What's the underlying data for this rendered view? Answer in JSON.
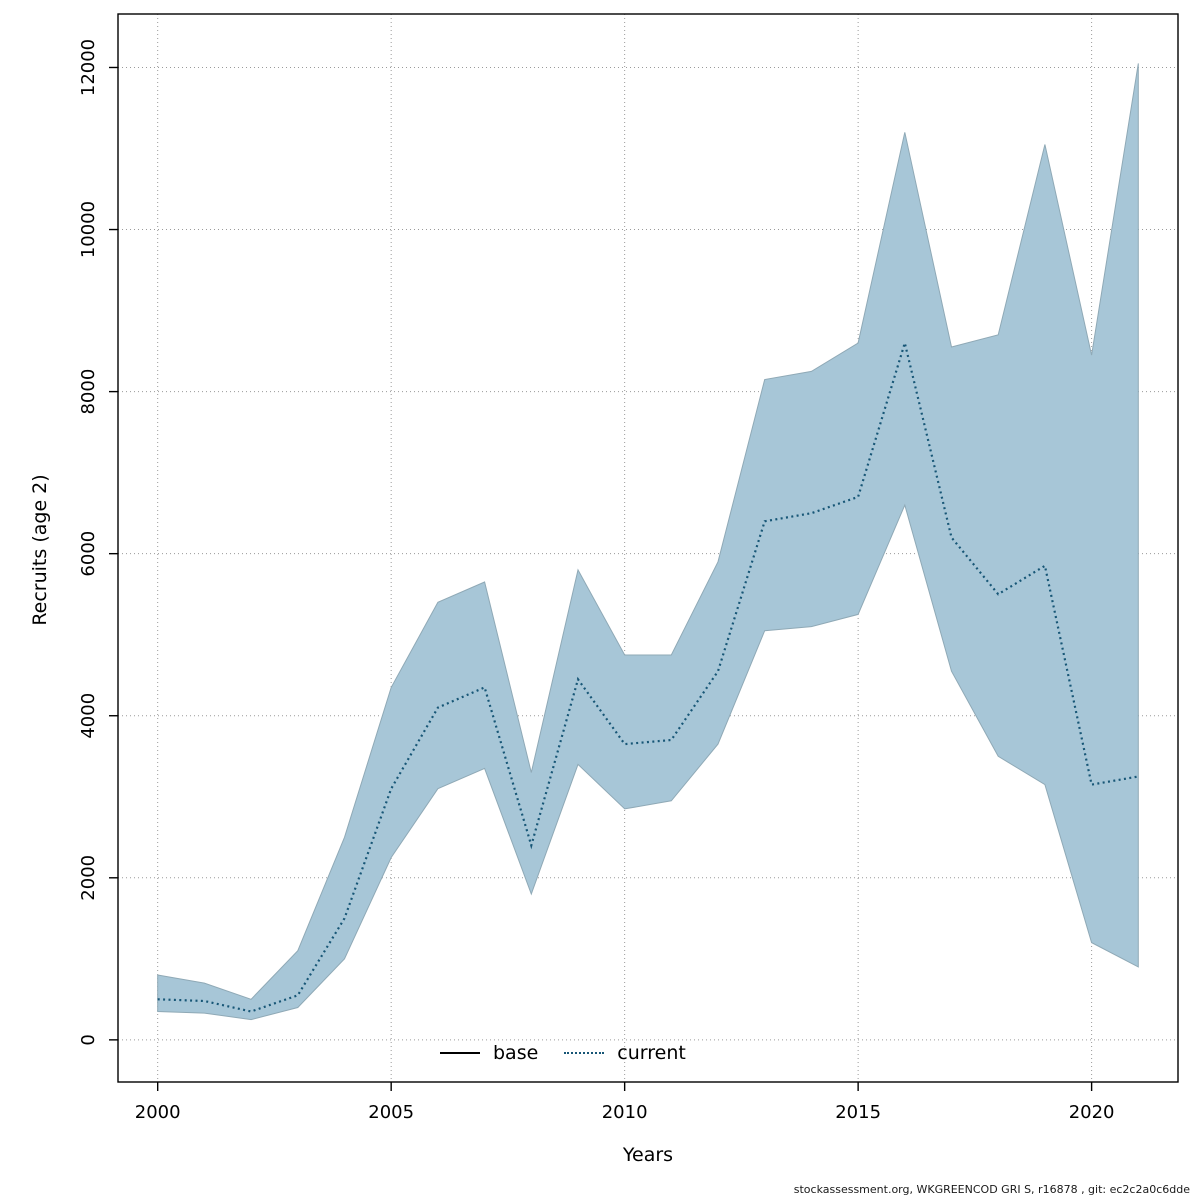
{
  "footer": "stockassessment.org, WKGREENCOD  GRI  S, r16878 , git: ec2c2a0c6dde",
  "chart_data": {
    "type": "area",
    "title": "",
    "xlabel": "Years",
    "ylabel": "Recruits (age 2)",
    "xlim": [
      2000,
      2021
    ],
    "ylim": [
      0,
      12000
    ],
    "xticks": [
      2000,
      2005,
      2010,
      2015,
      2020
    ],
    "yticks": [
      0,
      2000,
      4000,
      6000,
      8000,
      10000,
      12000
    ],
    "grid": true,
    "legend": [
      "base",
      "current"
    ],
    "legend_position": "bottom-center-inside",
    "x": [
      2000,
      2001,
      2002,
      2003,
      2004,
      2005,
      2006,
      2007,
      2008,
      2009,
      2010,
      2011,
      2012,
      2013,
      2014,
      2015,
      2016,
      2017,
      2018,
      2019,
      2020,
      2021
    ],
    "series": [
      {
        "name": "current",
        "style": "dotted-line",
        "values": [
          500,
          480,
          350,
          550,
          1500,
          3100,
          4100,
          4350,
          2400,
          4450,
          3650,
          3700,
          4550,
          6400,
          6500,
          6700,
          8600,
          6200,
          5500,
          5850,
          3150,
          3250
        ]
      },
      {
        "name": "ci-upper",
        "style": "ribbon-upper",
        "values": [
          800,
          700,
          500,
          1100,
          2500,
          4350,
          5400,
          5650,
          3300,
          5800,
          4750,
          4750,
          5900,
          8150,
          8250,
          8600,
          11200,
          8550,
          8700,
          11050,
          8450,
          12050
        ]
      },
      {
        "name": "ci-lower",
        "style": "ribbon-lower",
        "values": [
          350,
          330,
          250,
          400,
          1000,
          2250,
          3100,
          3350,
          1800,
          3400,
          2850,
          2950,
          3650,
          5050,
          5100,
          5250,
          6600,
          4550,
          3500,
          3150,
          1200,
          900
        ]
      }
    ],
    "colors": {
      "ribbon": "#a7c6d7",
      "ribbon_edge": "#8fa9b6",
      "line": "#175676",
      "grid": "#9a9a9a",
      "axis": "#000000"
    }
  }
}
